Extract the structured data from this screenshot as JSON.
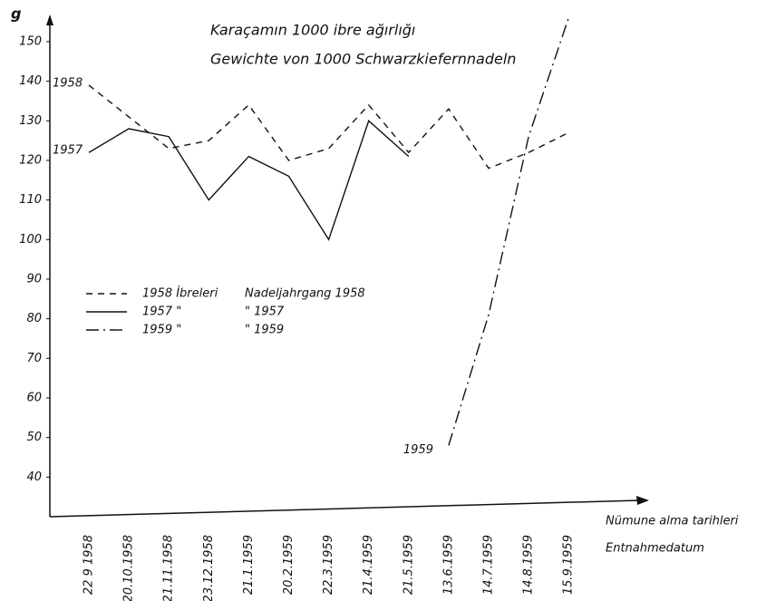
{
  "chart_data": {
    "type": "line",
    "title": "Karaçamın 1000 ibre ağırlığı",
    "subtitle": "Gewichte von 1000 Schwarzkiefernnadeln",
    "y_label": "g",
    "x_label": "Nümune alma tarihleri",
    "x_label_2": "Entnahmedatum",
    "categories": [
      "22 9 1958",
      "20.10.1958",
      "21.11.1958",
      "23.12.1958",
      "21.1.1959",
      "20.2.1959",
      "22.3.1959",
      "21.4.1959",
      "21.5.1959",
      "13.6.1959",
      "14.7.1959",
      "14.8.1959",
      "15.9.1959"
    ],
    "series": [
      {
        "name": "1958",
        "color": "#111111",
        "dash": "7,6",
        "values": [
          139,
          131,
          123,
          125,
          134,
          120,
          123,
          134,
          122,
          133,
          118,
          122,
          127
        ]
      },
      {
        "name": "1957",
        "color": "#111111",
        "dash": "none",
        "values": [
          122,
          128,
          126,
          110,
          121,
          116,
          100,
          130,
          121,
          null,
          null,
          null,
          null
        ]
      },
      {
        "name": "1959",
        "color": "#111111",
        "dash": "14,5,2,5",
        "values": [
          null,
          null,
          null,
          null,
          null,
          null,
          null,
          null,
          null,
          48,
          81,
          126,
          156
        ]
      }
    ],
    "legend_labels": [
      [
        "1958 İbreleri",
        "Nadeljahrgang 1958"
      ],
      [
        "1957 \"",
        "\" 1957"
      ],
      [
        "1959 \"",
        "\" 1959"
      ]
    ],
    "ylim": [
      30,
      158
    ],
    "yticks": [
      40,
      50,
      60,
      70,
      80,
      90,
      100,
      110,
      120,
      130,
      140,
      150
    ]
  }
}
